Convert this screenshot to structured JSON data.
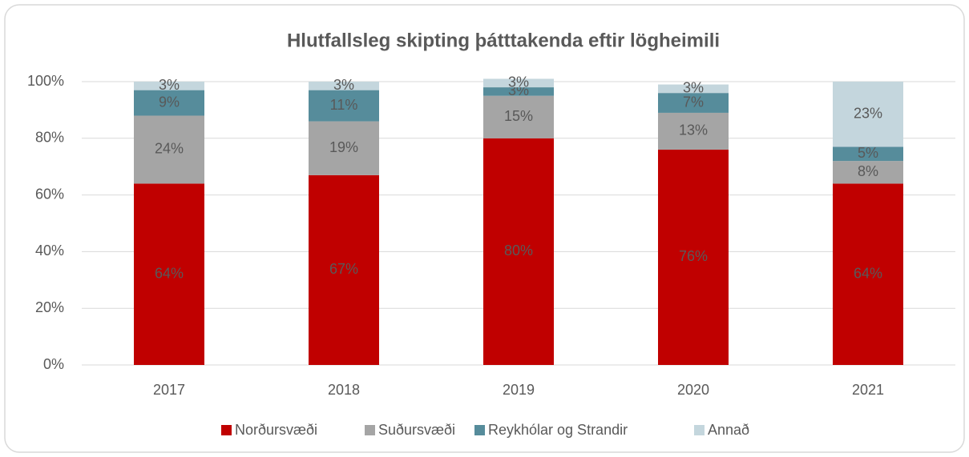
{
  "chart_data": {
    "type": "stacked_bar",
    "title": "Hlutfallsleg skipting þátttakenda eftir lögheimili",
    "categories": [
      "2017",
      "2018",
      "2019",
      "2020",
      "2021"
    ],
    "series": [
      {
        "name": "Norðursvæði",
        "color": "#c00000",
        "values": [
          64,
          67,
          80,
          76,
          64
        ],
        "value_labels": [
          "64%",
          "67%",
          "80%",
          "76%",
          "64%"
        ]
      },
      {
        "name": "Suðursvæði",
        "color": "#a5a5a5",
        "values": [
          24,
          19,
          15,
          13,
          8
        ],
        "value_labels": [
          "24%",
          "19%",
          "15%",
          "13%",
          "8%"
        ]
      },
      {
        "name": "Reykhólar og Strandir",
        "color": "#568c9b",
        "values": [
          9,
          11,
          3,
          7,
          5
        ],
        "value_labels": [
          "9%",
          "11%",
          "3%",
          "7%",
          "5%"
        ]
      },
      {
        "name": "Annað",
        "color": "#c4d6dd",
        "values": [
          3,
          3,
          3,
          3,
          23
        ],
        "value_labels": [
          "3%",
          "3%",
          "3%",
          "3%",
          "23%"
        ]
      }
    ],
    "ylim": [
      0,
      100
    ],
    "yticks": [
      {
        "value": 0,
        "label": "0%"
      },
      {
        "value": 20,
        "label": "20%"
      },
      {
        "value": 40,
        "label": "40%"
      },
      {
        "value": 60,
        "label": "60%"
      },
      {
        "value": 80,
        "label": "80%"
      },
      {
        "value": 100,
        "label": "100%"
      }
    ],
    "grid": true,
    "legend": "bottom"
  }
}
